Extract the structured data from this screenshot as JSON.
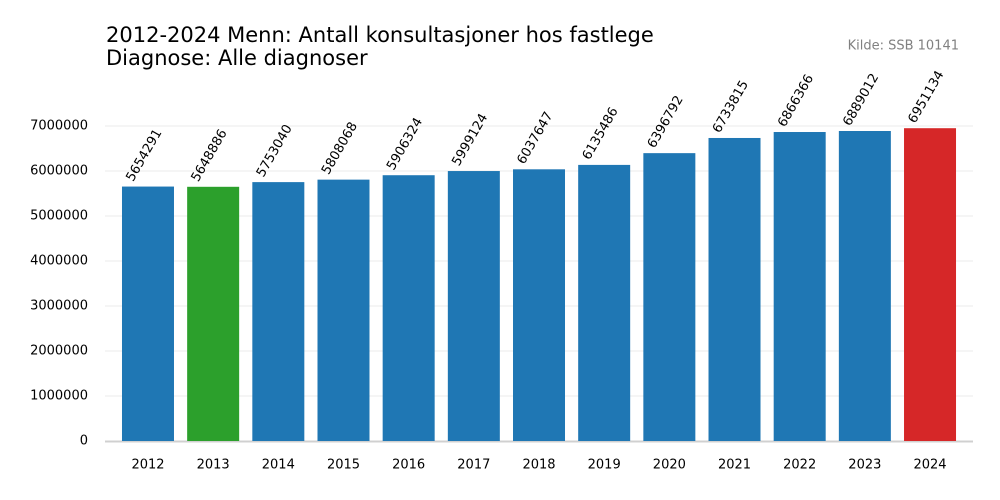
{
  "chart_data": {
    "type": "bar",
    "title": "2012-2024 Menn: Antall konsultasjoner hos fastlege",
    "subtitle": "Diagnose: Alle diagnoser",
    "source": "Kilde: SSB 10141",
    "categories": [
      "2012",
      "2013",
      "2014",
      "2015",
      "2016",
      "2017",
      "2018",
      "2019",
      "2020",
      "2021",
      "2022",
      "2023",
      "2024"
    ],
    "values": [
      5654291,
      5648886,
      5753040,
      5808068,
      5906324,
      5999124,
      6037647,
      6135486,
      6396792,
      6733815,
      6866366,
      6889012,
      6951134
    ],
    "colors": [
      "#1f77b4",
      "#2ca02c",
      "#1f77b4",
      "#1f77b4",
      "#1f77b4",
      "#1f77b4",
      "#1f77b4",
      "#1f77b4",
      "#1f77b4",
      "#1f77b4",
      "#1f77b4",
      "#1f77b4",
      "#d62728"
    ],
    "ylim": [
      0,
      7300000
    ],
    "yticks": [
      0,
      1000000,
      2000000,
      3000000,
      4000000,
      5000000,
      6000000,
      7000000
    ],
    "grid": true
  }
}
